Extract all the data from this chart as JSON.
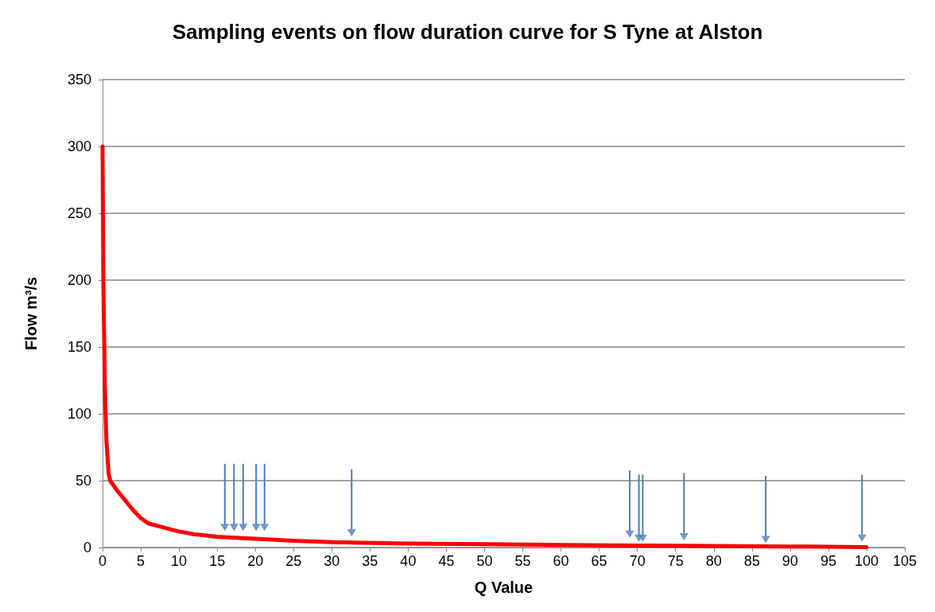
{
  "chart_data": {
    "type": "line",
    "title": "Sampling events on flow duration curve for S Tyne at Alston",
    "xlabel": "Q Value",
    "ylabel": "Flow m³/s",
    "xlim": [
      0,
      105
    ],
    "xticks": [
      0,
      5,
      10,
      15,
      20,
      25,
      30,
      35,
      40,
      45,
      50,
      55,
      60,
      65,
      70,
      75,
      80,
      85,
      90,
      95,
      100,
      105
    ],
    "ylim": [
      0,
      350
    ],
    "yticks": [
      0,
      50,
      100,
      150,
      200,
      250,
      300,
      350
    ],
    "grid": "y",
    "series": [
      {
        "color": "#ff0000",
        "x": [
          0,
          0.1,
          0.3,
          0.5,
          0.8,
          1,
          2,
          3,
          4,
          5,
          6,
          8,
          10,
          12,
          15,
          20,
          25,
          30,
          40,
          50,
          60,
          70,
          80,
          90,
          100
        ],
        "values": [
          300,
          200,
          120,
          80,
          55,
          50,
          42,
          35,
          28,
          22,
          18,
          15,
          12,
          10,
          8,
          6.5,
          5,
          4,
          3,
          2.5,
          2,
          1.5,
          1.2,
          0.8,
          0.3
        ]
      },
      {
        "type": "scatter",
        "marker": "triangle",
        "color": "#4a7ebb",
        "x": [
          16.0,
          17.2,
          18.4,
          20.1,
          21.2,
          32.6,
          69.0,
          70.2,
          70.7,
          76.1,
          86.8,
          99.4
        ],
        "values": [
          15,
          15,
          15,
          15,
          15,
          11,
          10,
          7,
          7,
          8,
          6,
          7
        ]
      }
    ]
  }
}
